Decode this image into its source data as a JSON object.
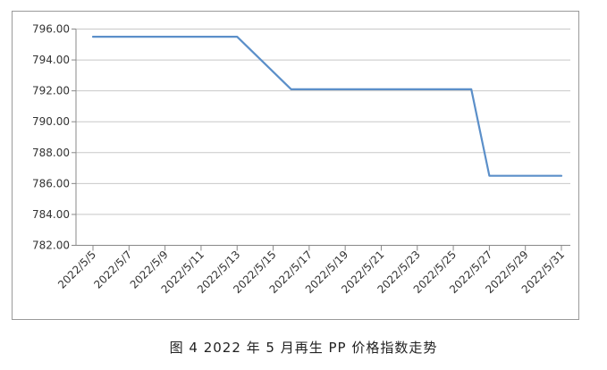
{
  "caption": "图 4 2022 年 5 月再生 PP 价格指数走势",
  "colors": {
    "line": "#5b8fc9",
    "grid": "#c8c8c8",
    "axis": "#888888",
    "text": "#333333"
  },
  "chart_data": {
    "type": "line",
    "title": "",
    "xlabel": "",
    "ylabel": "",
    "x_tick_labels": [
      "2022/5/5",
      "2022/5/7",
      "2022/5/9",
      "2022/5/11",
      "2022/5/13",
      "2022/5/15",
      "2022/5/17",
      "2022/5/19",
      "2022/5/21",
      "2022/5/23",
      "2022/5/25",
      "2022/5/27",
      "2022/5/29",
      "2022/5/31"
    ],
    "y_tick_labels": [
      "796.00",
      "794.00",
      "792.00",
      "790.00",
      "788.00",
      "786.00",
      "784.00",
      "782.00"
    ],
    "ylim": [
      782,
      796
    ],
    "xlim": [
      "2022/5/5",
      "2022/5/31"
    ],
    "grid": true,
    "legend": false,
    "series": [
      {
        "x": [
          "2022/5/5",
          "2022/5/13",
          "2022/5/16",
          "2022/5/26",
          "2022/5/27",
          "2022/5/31"
        ],
        "values": [
          795.5,
          795.5,
          792.1,
          792.1,
          786.5,
          786.5
        ]
      }
    ]
  }
}
